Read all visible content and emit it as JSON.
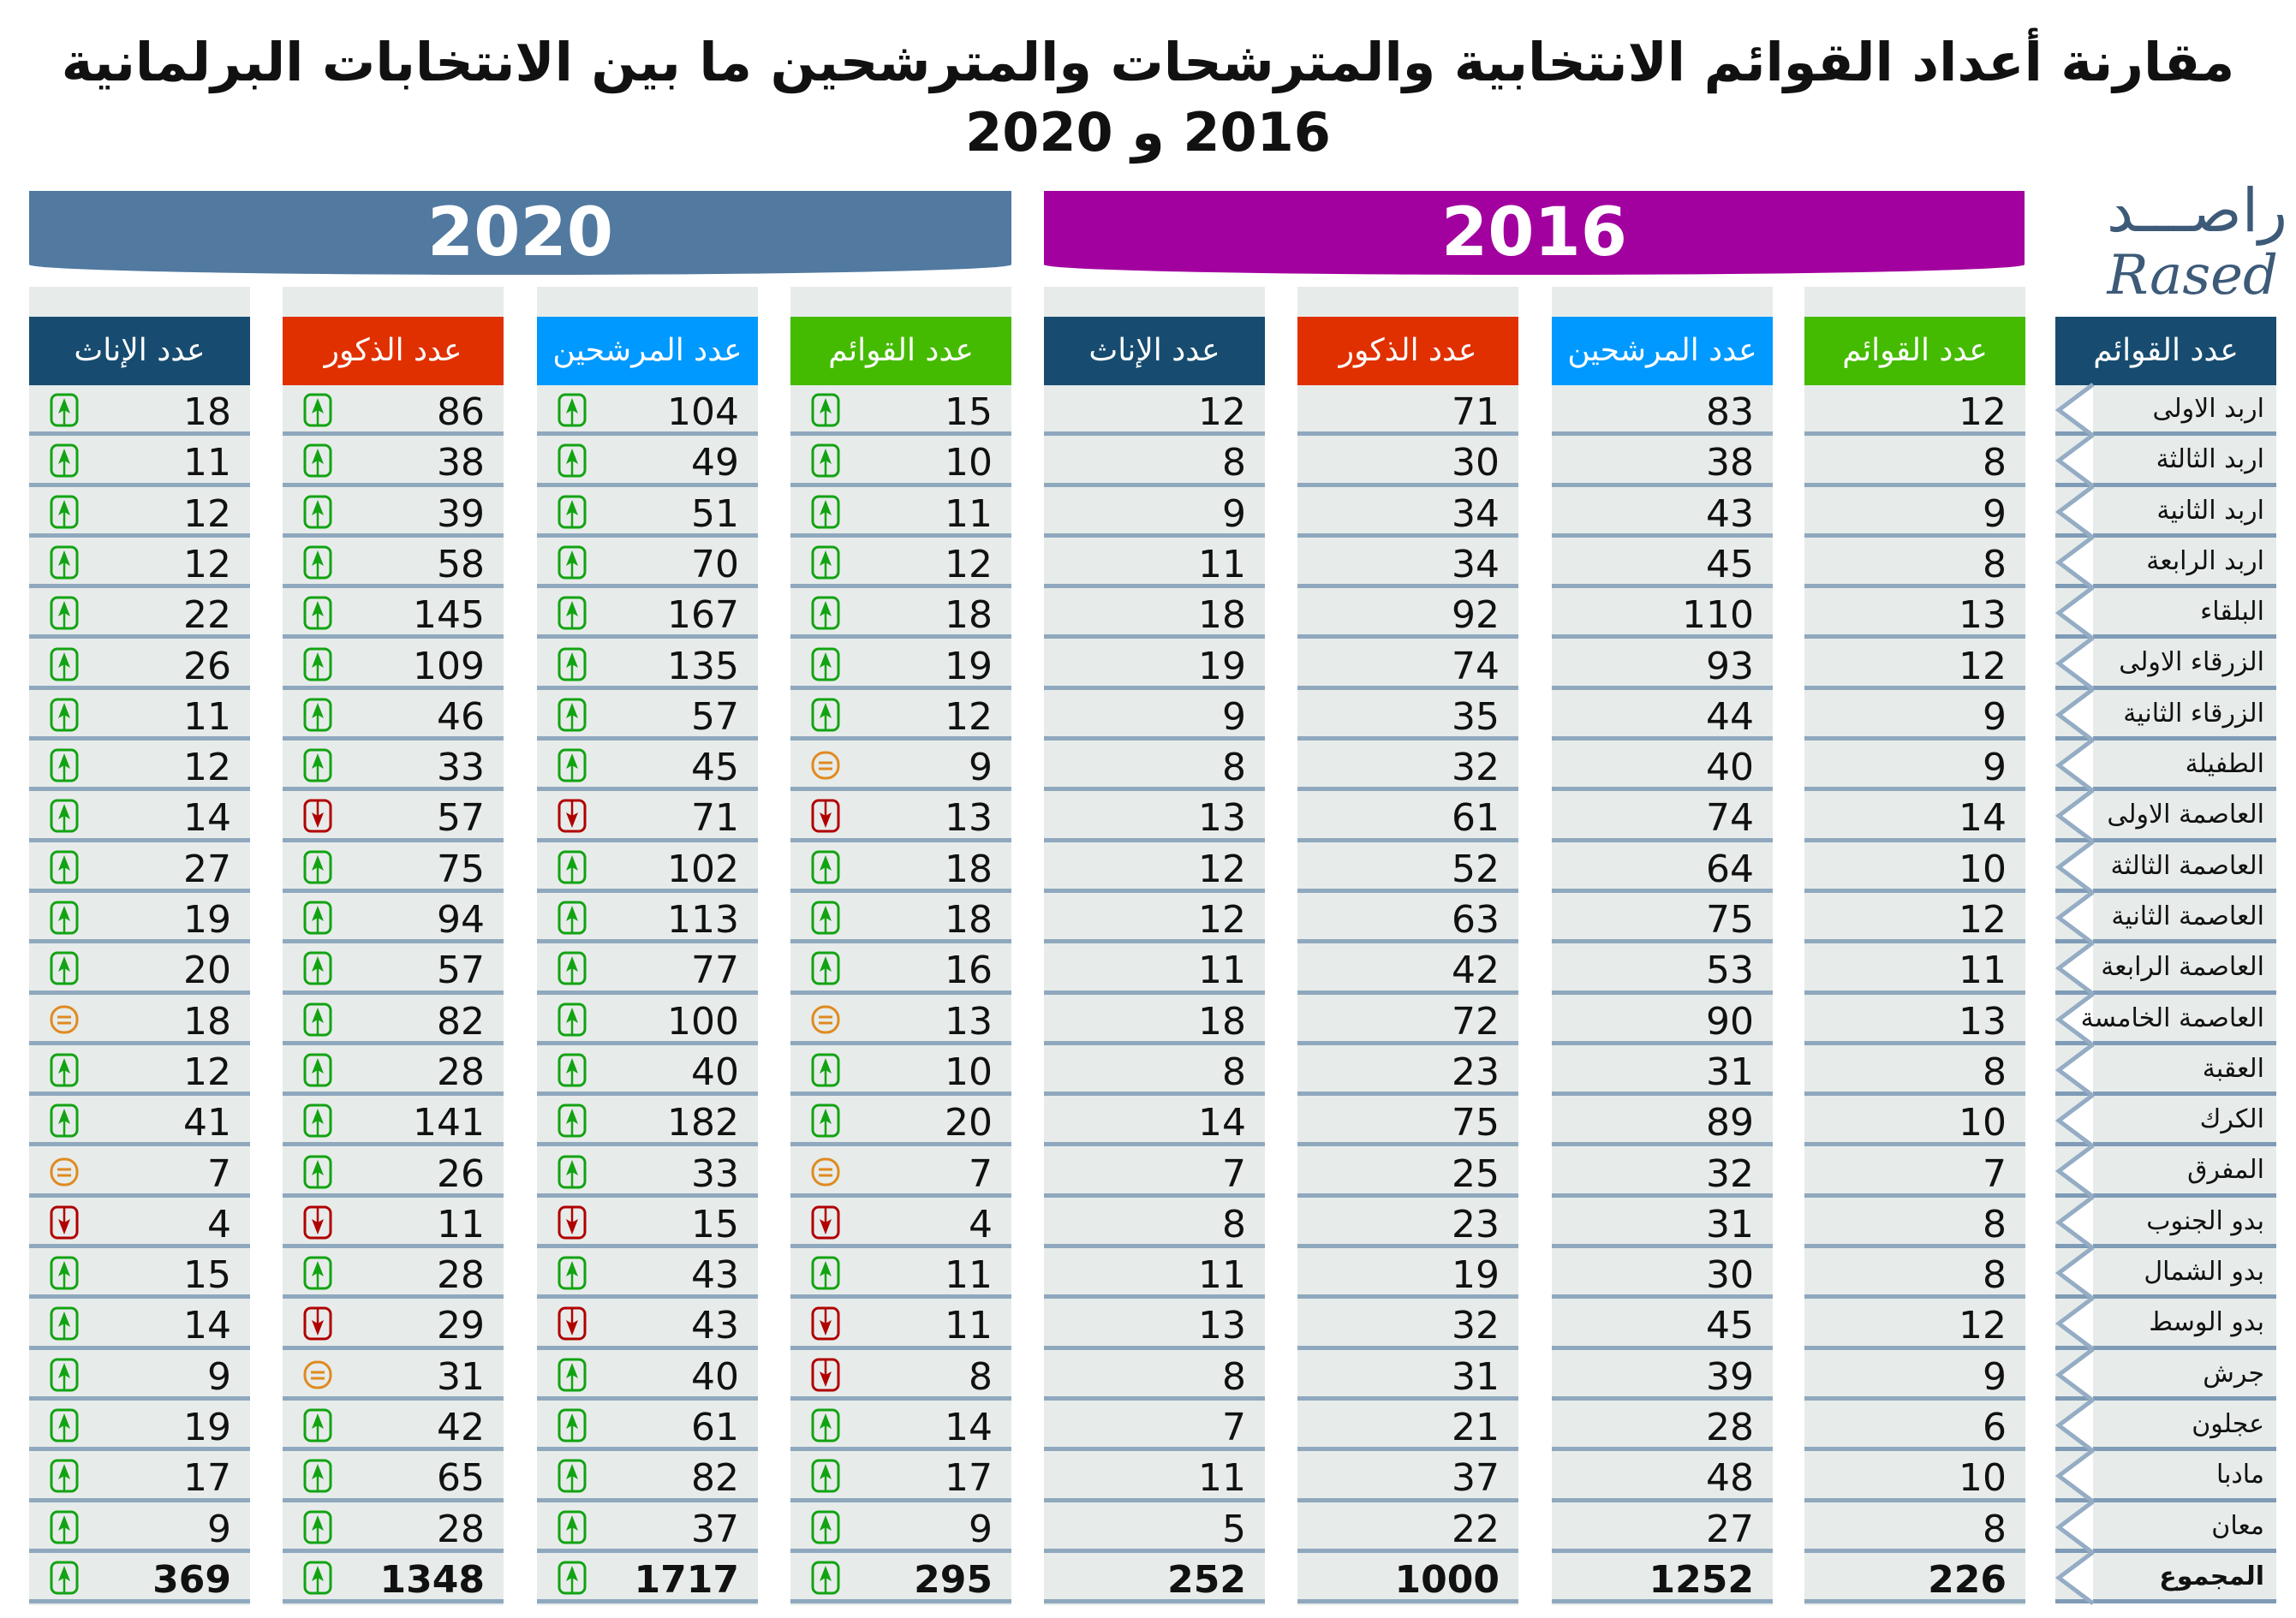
{
  "title": {
    "line1": "مقارنة أعداد القوائم الانتخابية والمترشحات والمترشحين ما بين الانتخابات البرلمانية",
    "line2": "2016 و 2020"
  },
  "logo": {
    "ar": "راصـــد",
    "en": "Rased"
  },
  "banners": {
    "y2020": "2020",
    "y2016": "2016"
  },
  "headers": {
    "lists": "عدد القوائم",
    "candidates": "عدد المرشحين",
    "males": "عدد الذكور",
    "females": "عدد الإناث",
    "districts": "عدد القوائم"
  },
  "colors": {
    "lists": "#44bb00",
    "candidates": "#0099ff",
    "males": "#e03000",
    "females": "#174c70",
    "up": "#12a312",
    "down": "#b00000",
    "equal": "#e08a20"
  },
  "districts": [
    "اربد الاولى",
    "اربد الثالثة",
    "اربد الثانية",
    "اربد الرابعة",
    "البلقاء",
    "الزرقاء الاولى",
    "الزرقاء الثانية",
    "الطفيلة",
    "العاصمة الاولى",
    "العاصمة الثالثة",
    "العاصمة الثانية",
    "العاصمة الرابعة",
    "العاصمة الخامسة",
    "العقبة",
    "الكرك",
    "المفرق",
    "بدو الجنوب",
    "بدو الشمال",
    "بدو الوسط",
    "جرش",
    "عجلون",
    "مادبا",
    "معان",
    "المجموع"
  ],
  "y2016": {
    "lists": [
      12,
      8,
      9,
      8,
      13,
      12,
      9,
      9,
      14,
      10,
      12,
      11,
      13,
      8,
      10,
      7,
      8,
      8,
      12,
      9,
      6,
      10,
      8,
      226
    ],
    "candidates": [
      83,
      38,
      43,
      45,
      110,
      93,
      44,
      40,
      74,
      64,
      75,
      53,
      90,
      31,
      89,
      32,
      31,
      30,
      45,
      39,
      28,
      48,
      27,
      1252
    ],
    "males": [
      71,
      30,
      34,
      34,
      92,
      74,
      35,
      32,
      61,
      52,
      63,
      42,
      72,
      23,
      75,
      25,
      23,
      19,
      32,
      31,
      21,
      37,
      22,
      1000
    ],
    "females": [
      12,
      8,
      9,
      11,
      18,
      19,
      9,
      8,
      13,
      12,
      12,
      11,
      18,
      8,
      14,
      7,
      8,
      11,
      13,
      8,
      7,
      11,
      5,
      252
    ]
  },
  "y2020": {
    "lists": [
      15,
      10,
      11,
      12,
      18,
      19,
      12,
      9,
      13,
      18,
      18,
      16,
      13,
      10,
      20,
      7,
      4,
      11,
      11,
      8,
      14,
      17,
      9,
      295
    ],
    "candidates": [
      104,
      49,
      51,
      70,
      167,
      135,
      57,
      45,
      71,
      102,
      113,
      77,
      100,
      40,
      182,
      33,
      15,
      43,
      43,
      40,
      61,
      82,
      37,
      1717
    ],
    "males": [
      86,
      38,
      39,
      58,
      145,
      109,
      46,
      33,
      57,
      75,
      94,
      57,
      82,
      28,
      141,
      26,
      11,
      28,
      29,
      31,
      42,
      65,
      28,
      1348
    ],
    "females": [
      18,
      11,
      12,
      12,
      22,
      26,
      11,
      12,
      14,
      27,
      19,
      20,
      18,
      12,
      41,
      7,
      4,
      15,
      14,
      9,
      19,
      17,
      9,
      369
    ]
  },
  "trends2020": {
    "lists": [
      "up",
      "up",
      "up",
      "up",
      "up",
      "up",
      "up",
      "equal",
      "down",
      "up",
      "up",
      "up",
      "equal",
      "up",
      "up",
      "equal",
      "down",
      "up",
      "down",
      "down",
      "up",
      "up",
      "up",
      "up"
    ],
    "candidates": [
      "up",
      "up",
      "up",
      "up",
      "up",
      "up",
      "up",
      "up",
      "down",
      "up",
      "up",
      "up",
      "up",
      "up",
      "up",
      "up",
      "down",
      "up",
      "down",
      "up",
      "up",
      "up",
      "up",
      "up"
    ],
    "males": [
      "up",
      "up",
      "up",
      "up",
      "up",
      "up",
      "up",
      "up",
      "down",
      "up",
      "up",
      "up",
      "up",
      "up",
      "up",
      "up",
      "down",
      "up",
      "down",
      "equal",
      "up",
      "up",
      "up",
      "up"
    ],
    "females": [
      "up",
      "up",
      "up",
      "up",
      "up",
      "up",
      "up",
      "up",
      "up",
      "up",
      "up",
      "up",
      "equal",
      "up",
      "up",
      "equal",
      "down",
      "up",
      "up",
      "up",
      "up",
      "up",
      "up",
      "up"
    ]
  }
}
